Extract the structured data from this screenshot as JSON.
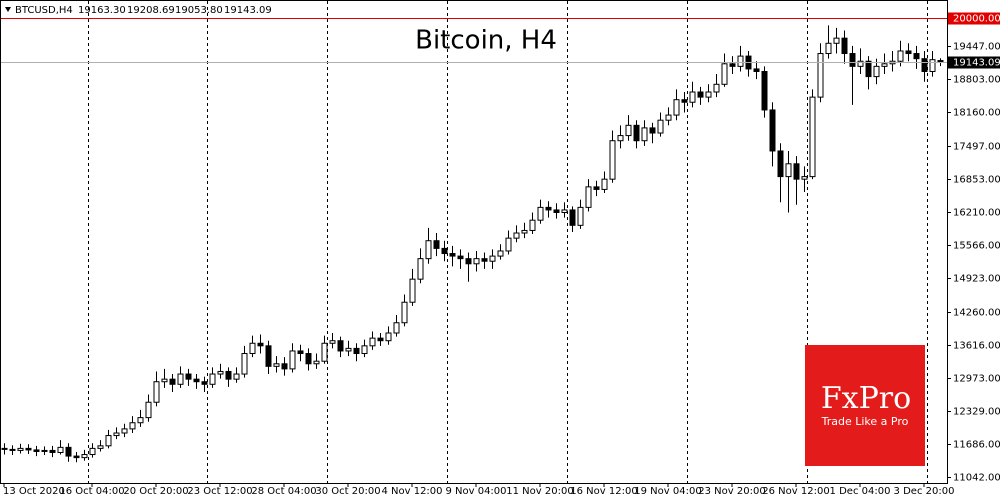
{
  "chart_data": {
    "type": "candlestick",
    "title": "Bitcoin, H4",
    "header": {
      "symbol": "BTCUSD,H4",
      "values": [
        "19163.30",
        "19208.69",
        "19053.80",
        "19143.09"
      ]
    },
    "logo": {
      "brand": "FxPro",
      "slogan": "Trade Like a Pro"
    },
    "level": {
      "value": 20000,
      "label": "20000.00",
      "color": "#e00000"
    },
    "current_price": {
      "value": 19143.09,
      "label": "19143.09"
    },
    "ylim": [
      10925,
      20344
    ],
    "yticks": [
      {
        "value": 11042,
        "label": "11042.00"
      },
      {
        "value": 11686,
        "label": "11686.00"
      },
      {
        "value": 12329,
        "label": "12329.00"
      },
      {
        "value": 12973,
        "label": "12973.00"
      },
      {
        "value": 13616,
        "label": "13616.00"
      },
      {
        "value": 14260,
        "label": "14260.00"
      },
      {
        "value": 14923,
        "label": "14923.00"
      },
      {
        "value": 15566,
        "label": "15566.00"
      },
      {
        "value": 16210,
        "label": "16210.00"
      },
      {
        "value": 16853,
        "label": "16853.00"
      },
      {
        "value": 17497,
        "label": "17497.00"
      },
      {
        "value": 18160,
        "label": "18160.00"
      },
      {
        "value": 18803,
        "label": "18803.00"
      },
      {
        "value": 19447,
        "label": "19447.00"
      }
    ],
    "categories": [
      "13 Oct 2020",
      null,
      null,
      null,
      null,
      null,
      null,
      null,
      null,
      null,
      null,
      "16 Oct 04:00",
      null,
      null,
      null,
      null,
      null,
      null,
      null,
      "20 Oct 20:00",
      null,
      null,
      null,
      null,
      null,
      null,
      null,
      "23 Oct 12:00",
      null,
      null,
      null,
      null,
      null,
      null,
      null,
      "28 Oct 04:00",
      null,
      null,
      null,
      null,
      null,
      null,
      null,
      "30 Oct 20:00",
      null,
      null,
      null,
      null,
      null,
      null,
      null,
      "4 Nov 12:00",
      null,
      null,
      null,
      null,
      null,
      null,
      null,
      "9 Nov 04:00",
      null,
      null,
      null,
      null,
      null,
      null,
      null,
      "11 Nov 20:00",
      null,
      null,
      null,
      null,
      null,
      null,
      null,
      "16 Nov 12:00",
      null,
      null,
      null,
      null,
      null,
      null,
      null,
      "19 Nov 04:00",
      null,
      null,
      null,
      null,
      null,
      null,
      null,
      "23 Nov 20:00",
      null,
      null,
      null,
      null,
      null,
      null,
      null,
      "26 Nov 12:00",
      null,
      null,
      null,
      null,
      null,
      null,
      null,
      "1 Dec 04:00",
      null,
      null,
      null,
      null,
      null,
      null,
      null,
      "3 Dec 20:00",
      null,
      null
    ],
    "open": [
      11600,
      11580,
      11560,
      11600,
      11570,
      11540,
      11560,
      11520,
      11620,
      11450,
      11420,
      11480,
      11600,
      11650,
      11850,
      11900,
      11980,
      12100,
      12200,
      12500,
      12900,
      12950,
      12850,
      13050,
      12950,
      12900,
      12850,
      13050,
      13100,
      12950,
      13050,
      13450,
      13650,
      13600,
      13200,
      13250,
      13150,
      13500,
      13450,
      13250,
      13300,
      13650,
      13700,
      13500,
      13550,
      13450,
      13600,
      13750,
      13700,
      13850,
      14050,
      14450,
      14900,
      15300,
      15650,
      15500,
      15400,
      15350,
      15300,
      15200,
      15300,
      15250,
      15350,
      15450,
      15700,
      15800,
      15850,
      16050,
      16300,
      16250,
      16200,
      16250,
      15950,
      16300,
      16700,
      16650,
      16850,
      17600,
      17700,
      17900,
      17600,
      17850,
      17750,
      18000,
      18100,
      18400,
      18350,
      18550,
      18450,
      18550,
      18700,
      19100,
      19050,
      19250,
      19000,
      18950,
      18200,
      17400,
      16900,
      17150,
      16850,
      16900,
      18450,
      19300,
      19500,
      19600,
      19300,
      19050,
      19150,
      18850,
      19050,
      19100,
      19150,
      19350,
      19300,
      19200,
      18950,
      19163.3
    ],
    "high": [
      11700,
      11660,
      11690,
      11680,
      11650,
      11640,
      11650,
      11760,
      11700,
      11530,
      11570,
      11700,
      11760,
      11960,
      12010,
      12080,
      12230,
      12350,
      12650,
      13100,
      13150,
      13050,
      13200,
      13150,
      13050,
      13000,
      13180,
      13250,
      13180,
      13180,
      13600,
      13800,
      13820,
      13700,
      13400,
      13380,
      13650,
      13620,
      13550,
      13450,
      13800,
      13850,
      13780,
      13700,
      13650,
      13720,
      13880,
      13850,
      13980,
      14200,
      14600,
      15100,
      15500,
      15900,
      15800,
      15650,
      15550,
      15480,
      15420,
      15450,
      15420,
      15480,
      15580,
      15850,
      15950,
      16000,
      16200,
      16450,
      16420,
      16380,
      16400,
      16320,
      16450,
      16850,
      16820,
      17000,
      17800,
      17900,
      18100,
      18000,
      18000,
      17950,
      18150,
      18250,
      18600,
      18550,
      18750,
      18650,
      18700,
      18900,
      19300,
      19250,
      19450,
      19350,
      19150,
      19050,
      18350,
      17550,
      17400,
      17300,
      17100,
      18600,
      19500,
      19850,
      19800,
      19750,
      19450,
      19400,
      19250,
      19200,
      19300,
      19350,
      19550,
      19500,
      19450,
      19350,
      19350,
      19208.69
    ],
    "low": [
      11480,
      11470,
      11500,
      11490,
      11450,
      11470,
      11430,
      11480,
      11340,
      11330,
      11360,
      11420,
      11540,
      11600,
      11780,
      11820,
      11900,
      12020,
      12120,
      12420,
      12780,
      12700,
      12780,
      12820,
      12760,
      12700,
      12780,
      12960,
      12800,
      12880,
      12980,
      13380,
      13450,
      13050,
      13080,
      13020,
      13080,
      13300,
      13120,
      13150,
      13250,
      13550,
      13380,
      13400,
      13300,
      13380,
      13520,
      13600,
      13620,
      13780,
      13980,
      14380,
      14820,
      15200,
      15350,
      15250,
      15150,
      15100,
      14850,
      15050,
      15100,
      15100,
      15280,
      15380,
      15620,
      15700,
      15780,
      15980,
      16100,
      16080,
      16100,
      15820,
      15880,
      16220,
      16520,
      16580,
      16780,
      17450,
      17600,
      17450,
      17500,
      17550,
      17680,
      17900,
      18000,
      18150,
      18250,
      18300,
      18350,
      18450,
      18650,
      18900,
      18950,
      18850,
      18800,
      18050,
      17100,
      16400,
      16200,
      16350,
      16600,
      16850,
      18350,
      19200,
      19300,
      19100,
      18300,
      18900,
      18600,
      18700,
      18900,
      18950,
      19050,
      19150,
      19000,
      18750,
      18850,
      19053.8
    ],
    "close": [
      11580,
      11560,
      11600,
      11570,
      11540,
      11560,
      11520,
      11620,
      11450,
      11420,
      11480,
      11600,
      11650,
      11850,
      11900,
      11980,
      12100,
      12200,
      12500,
      12900,
      12950,
      12850,
      13050,
      12950,
      12900,
      12850,
      13050,
      13100,
      12950,
      13050,
      13450,
      13650,
      13600,
      13200,
      13250,
      13150,
      13500,
      13450,
      13250,
      13300,
      13650,
      13700,
      13500,
      13550,
      13450,
      13600,
      13750,
      13700,
      13850,
      14050,
      14450,
      14900,
      15300,
      15650,
      15500,
      15400,
      15350,
      15300,
      15200,
      15300,
      15250,
      15350,
      15450,
      15700,
      15800,
      15850,
      16050,
      16300,
      16250,
      16200,
      16250,
      15950,
      16300,
      16700,
      16650,
      16850,
      17600,
      17700,
      17900,
      17600,
      17850,
      17750,
      18000,
      18100,
      18400,
      18350,
      18550,
      18450,
      18550,
      18700,
      19100,
      19050,
      19250,
      19000,
      18950,
      18200,
      17400,
      16900,
      17150,
      16850,
      16900,
      18450,
      19300,
      19500,
      19600,
      19300,
      19050,
      19150,
      18850,
      19050,
      19100,
      19150,
      19350,
      19300,
      19200,
      18950,
      19180,
      19143.09
    ],
    "up_color": "#ffffff",
    "down_color": "#000000",
    "grid": false
  }
}
